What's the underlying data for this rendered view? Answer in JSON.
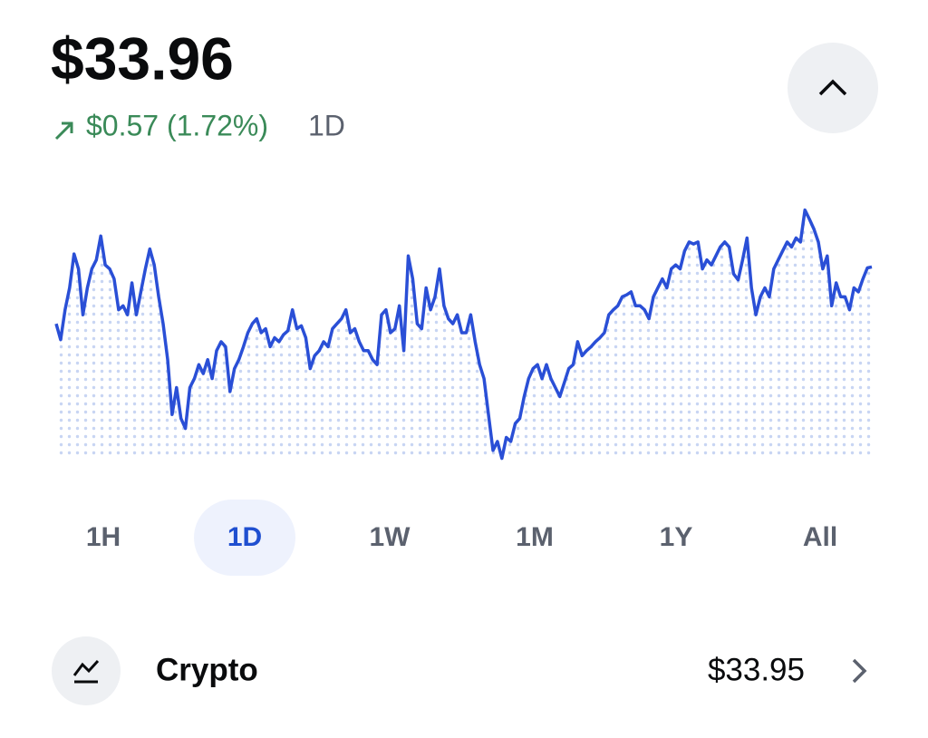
{
  "header": {
    "price": "$33.96",
    "change": "$0.57 (1.72%)",
    "period": "1D"
  },
  "chart_data": {
    "type": "line",
    "color": "#2a4fd6",
    "ylim": [
      32.0,
      34.6
    ],
    "values": [
      33.39,
      33.23,
      33.53,
      33.75,
      34.09,
      33.94,
      33.48,
      33.75,
      33.94,
      34.03,
      34.27,
      33.98,
      33.94,
      33.84,
      33.53,
      33.57,
      33.48,
      33.8,
      33.48,
      33.71,
      33.94,
      34.14,
      33.98,
      33.66,
      33.39,
      33.03,
      32.48,
      32.75,
      32.44,
      32.34,
      32.75,
      32.84,
      32.98,
      32.89,
      33.03,
      32.84,
      33.12,
      33.21,
      33.16,
      32.71,
      32.94,
      33.03,
      33.16,
      33.3,
      33.39,
      33.44,
      33.3,
      33.34,
      33.16,
      33.25,
      33.21,
      33.28,
      33.32,
      33.53,
      33.34,
      33.37,
      33.25,
      32.94,
      33.07,
      33.12,
      33.21,
      33.16,
      33.34,
      33.39,
      33.44,
      33.53,
      33.3,
      33.34,
      33.21,
      33.12,
      33.12,
      33.03,
      32.98,
      33.48,
      33.53,
      33.3,
      33.34,
      33.57,
      33.12,
      34.07,
      33.84,
      33.39,
      33.34,
      33.75,
      33.53,
      33.66,
      33.94,
      33.57,
      33.44,
      33.39,
      33.48,
      33.3,
      33.3,
      33.48,
      33.21,
      32.98,
      32.84,
      32.48,
      32.12,
      32.21,
      32.04,
      32.25,
      32.21,
      32.39,
      32.44,
      32.66,
      32.84,
      32.94,
      32.98,
      32.84,
      32.98,
      32.84,
      32.75,
      32.66,
      32.8,
      32.94,
      32.98,
      33.21,
      33.07,
      33.12,
      33.16,
      33.21,
      33.25,
      33.3,
      33.48,
      33.53,
      33.57,
      33.66,
      33.68,
      33.71,
      33.57,
      33.57,
      33.53,
      33.44,
      33.66,
      33.75,
      33.84,
      33.75,
      33.94,
      33.98,
      33.94,
      34.12,
      34.21,
      34.19,
      34.21,
      33.94,
      34.03,
      33.98,
      34.07,
      34.16,
      34.21,
      34.16,
      33.89,
      33.83,
      34.03,
      34.25,
      33.75,
      33.48,
      33.66,
      33.75,
      33.66,
      33.94,
      34.03,
      34.12,
      34.21,
      34.16,
      34.25,
      34.21,
      34.53,
      34.44,
      34.34,
      34.21,
      33.94,
      34.07,
      33.57,
      33.8,
      33.66,
      33.66,
      33.53,
      33.75,
      33.71,
      33.84,
      33.95,
      33.96
    ]
  },
  "range_buttons": {
    "options": [
      "1H",
      "1D",
      "1W",
      "1M",
      "1Y",
      "All"
    ],
    "selected": 1
  },
  "holding": {
    "name": "Crypto",
    "value": "$33.95"
  }
}
